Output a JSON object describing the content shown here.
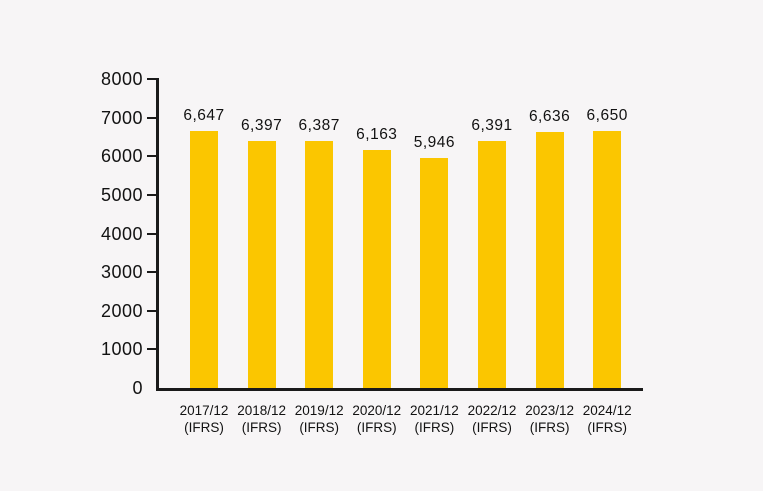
{
  "page": {
    "background_color": "#f7f5f6",
    "text_color": "#121212",
    "axis_color": "#1a1a1a"
  },
  "chart_data": {
    "type": "bar",
    "title": "",
    "xlabel": "",
    "ylabel": "",
    "categories": [
      "2017/12",
      "2018/12",
      "2019/12",
      "2020/12",
      "2021/12",
      "2022/12",
      "2023/12",
      "2024/12"
    ],
    "category_sublabel": "(IFRS)",
    "values": [
      6647,
      6397,
      6387,
      6163,
      5946,
      6391,
      6636,
      6650
    ],
    "value_labels": [
      "6,647",
      "6,397",
      "6,387",
      "6,163",
      "5,946",
      "6,391",
      "6,636",
      "6,650"
    ],
    "bar_color": "#fbc600",
    "ylim": [
      0,
      8000
    ],
    "y_ticks": [
      0,
      1000,
      2000,
      3000,
      4000,
      5000,
      6000,
      7000,
      8000
    ],
    "grid": false,
    "legend": "none"
  }
}
